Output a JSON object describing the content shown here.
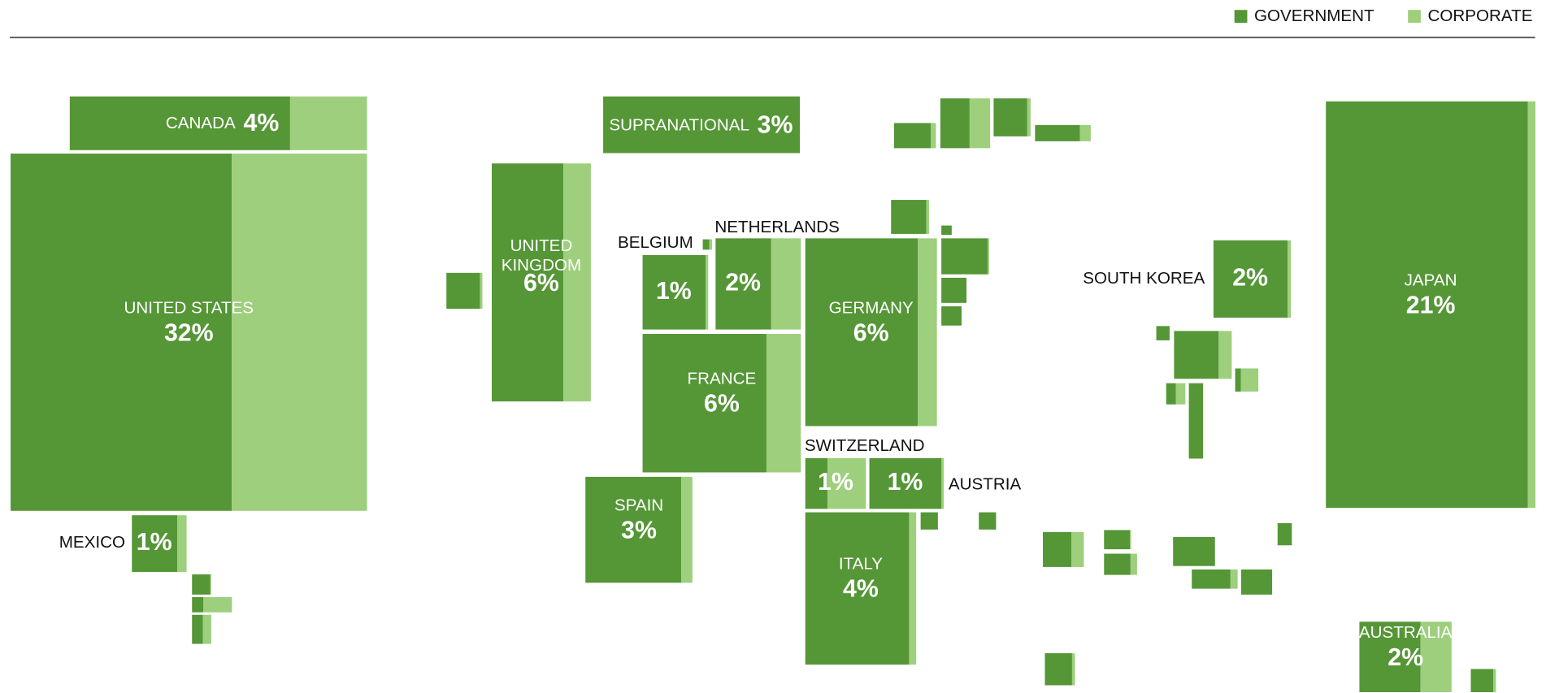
{
  "chart_data": {
    "type": "cartogram",
    "categories": [
      "CANADA",
      "UNITED STATES",
      "MEXICO",
      null,
      null,
      null,
      "SUPRANATIONAL",
      "UNITED KINGDOM",
      null,
      "BELGIUM",
      null,
      "NETHERLANDS",
      "FRANCE",
      "GERMANY",
      "SPAIN",
      "SWITZERLAND",
      "AUSTRIA",
      "ITALY",
      "SOUTH KOREA",
      "JAPAN",
      "AUSTRALIA",
      null,
      null,
      null,
      null,
      null,
      null,
      null,
      null,
      null,
      null,
      null,
      null,
      null,
      null,
      null,
      null,
      null,
      null,
      null,
      null,
      null,
      null,
      null,
      null,
      null
    ],
    "values": [
      4,
      32,
      1,
      0.11,
      0.17,
      0.16,
      3,
      6,
      0.35,
      1,
      0.03,
      2,
      6,
      6,
      3,
      1,
      1,
      4,
      2,
      21,
      2,
      0.29,
      0.65,
      0.38,
      0.25,
      0.35,
      0.03,
      0.46,
      0.18,
      0.11,
      0.09,
      0.09,
      0.39,
      0.15,
      0.19,
      0.06,
      0.73,
      0.15,
      0.12,
      0.3,
      0.33,
      0.24,
      0.22,
      0.09,
      0.26,
      0.16
    ],
    "value_labels": [
      "4%",
      "32%",
      "1%",
      null,
      null,
      null,
      "3%",
      "6%",
      null,
      "1%",
      null,
      "2%",
      "6%",
      "6%",
      "3%",
      "1%",
      "1%",
      "4%",
      "2%",
      "21%",
      "2%",
      null,
      null,
      null,
      null,
      null,
      null,
      null,
      null,
      null,
      null,
      null,
      null,
      null,
      null,
      null,
      null,
      null,
      null,
      null,
      null,
      null,
      null,
      null,
      null,
      null
    ],
    "series": [
      {
        "name": "GOVERNMENT",
        "color": "#559636",
        "values": [
          2.96,
          19.84,
          0.82,
          0.1,
          0.05,
          0.09,
          3,
          4.32,
          0.32,
          0.95,
          0.02,
          1.3,
          4.68,
          5.1,
          2.67,
          0.37,
          0.96,
          3.72,
          1.9,
          20.16,
          1.32,
          0.25,
          0.38,
          0.34,
          0.2,
          0.32,
          0.03,
          0.44,
          0.18,
          0.11,
          0.09,
          0.09,
          0.27,
          0.14,
          0.15,
          0.06,
          0.56,
          0.04,
          0.06,
          0.29,
          0.33,
          0.2,
          0.22,
          0.09,
          0.23,
          0.14
        ]
      },
      {
        "name": "CORPORATE",
        "color": "#9dcf7d",
        "values": [
          1.04,
          12.16,
          0.18,
          0.01,
          0.12,
          0.07,
          0,
          1.68,
          0.03,
          0.05,
          0.01,
          0.7,
          1.32,
          0.9,
          0.33,
          0.63,
          0.04,
          0.28,
          0.1,
          0.84,
          0.68,
          0.04,
          0.27,
          0.04,
          0.05,
          0.03,
          0,
          0.02,
          0,
          0,
          0,
          0,
          0.12,
          0.01,
          0.04,
          0,
          0.17,
          0.11,
          0.06,
          0.01,
          0,
          0.04,
          0,
          0,
          0.03,
          0.02
        ]
      }
    ],
    "legend": "top-right"
  }
}
